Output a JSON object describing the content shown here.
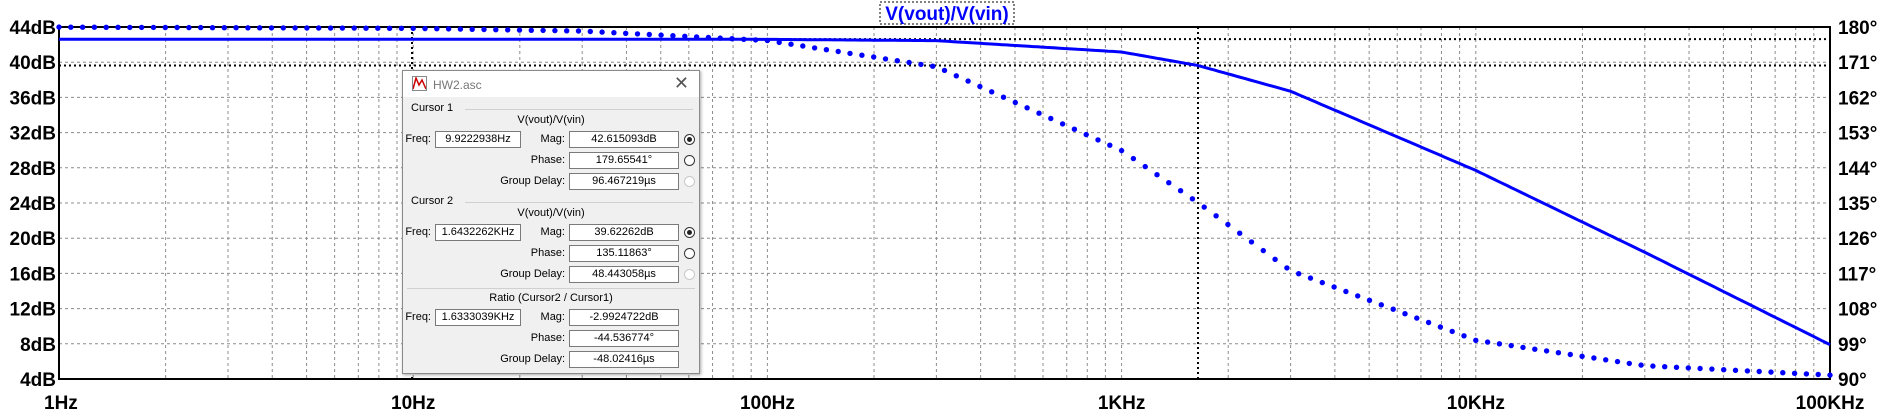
{
  "chart_data": {
    "type": "line",
    "title": "V(vout)/V(vin)",
    "x_scale": "log",
    "xlim": [
      1,
      100000
    ],
    "x_ticks": [
      "1Hz",
      "10Hz",
      "100Hz",
      "1KHz",
      "10KHz",
      "100KHz"
    ],
    "y_left_unit": "dB",
    "ylim_left": [
      4,
      44
    ],
    "y_left_ticks": [
      "4dB",
      "8dB",
      "12dB",
      "16dB",
      "20dB",
      "24dB",
      "28dB",
      "32dB",
      "36dB",
      "40dB",
      "44dB"
    ],
    "ylim_right": [
      90,
      180
    ],
    "y_right_ticks": [
      "90°",
      "99°",
      "108°",
      "117°",
      "126°",
      "135°",
      "144°",
      "153°",
      "162°",
      "171°",
      "180°"
    ],
    "grid": true,
    "series": [
      {
        "quantity": "magnitude",
        "style": "solid",
        "axis": "left",
        "x": [
          1,
          10,
          100,
          300,
          1000,
          1643.2262,
          3000,
          10000,
          30000,
          100000
        ],
        "y": [
          42.6152,
          42.6151,
          42.596,
          42.45,
          41.16,
          39.6226,
          36.7,
          27.7,
          18.4,
          7.9
        ]
      },
      {
        "quantity": "phase",
        "style": "dotted",
        "axis": "right",
        "x": [
          1,
          9.9223,
          30,
          100,
          300,
          1000,
          1643.2262,
          3000,
          10000,
          30000,
          100000
        ],
        "y": [
          179.97,
          179.655,
          178.96,
          176.54,
          169.83,
          148.4,
          135.1186,
          117.7,
          99.9,
          93.4,
          91.0
        ]
      }
    ],
    "cursors": [
      {
        "freq_hz": 9.9222938,
        "mag_db": 42.615093,
        "label": "cursor1"
      },
      {
        "freq_hz": 1643.2262,
        "mag_db": 39.62262,
        "label": "cursor2"
      }
    ]
  },
  "colors": {
    "trace": "#0000ff",
    "grid": "#8c8c8c",
    "cursor": "#000000",
    "dialog_bg": "#f0f0f0"
  },
  "dialog": {
    "title": "HW2.asc",
    "close_glyph": "✕",
    "cursor1": {
      "heading": "Cursor 1",
      "expr": "V(vout)/V(vin)",
      "freq_label": "Freq:",
      "freq": "9.9222938Hz",
      "mag_label": "Mag:",
      "mag": "42.615093dB",
      "phase_label": "Phase:",
      "phase": "179.65541°",
      "gd_label": "Group Delay:",
      "gd": "96.467219µs"
    },
    "cursor2": {
      "heading": "Cursor 2",
      "expr": "V(vout)/V(vin)",
      "freq_label": "Freq:",
      "freq": "1.6432262KHz",
      "mag_label": "Mag:",
      "mag": "39.62262dB",
      "phase_label": "Phase:",
      "phase": "135.11863°",
      "gd_label": "Group Delay:",
      "gd": "48.443058µs"
    },
    "ratio": {
      "heading": "Ratio (Cursor2 / Cursor1)",
      "freq_label": "Freq:",
      "freq": "1.6333039KHz",
      "mag_label": "Mag:",
      "mag": "-2.9924722dB",
      "phase_label": "Phase:",
      "phase": "-44.536774°",
      "gd_label": "Group Delay:",
      "gd": "-48.02416µs"
    }
  }
}
